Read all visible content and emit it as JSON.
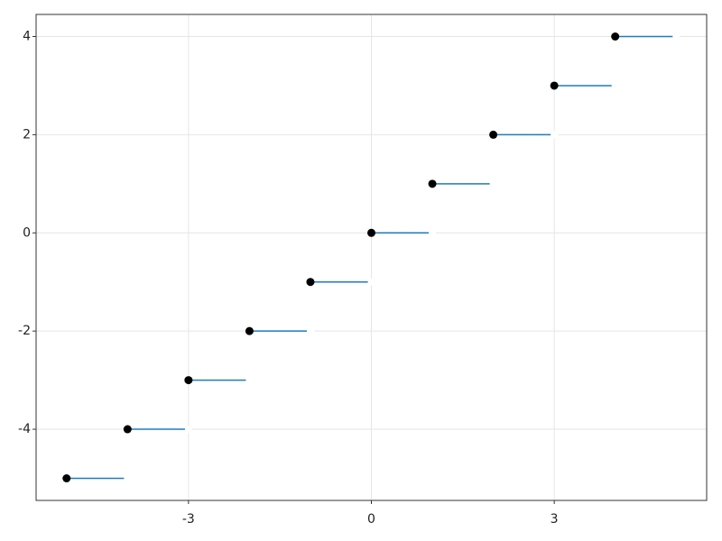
{
  "chart_data": {
    "type": "segments",
    "x": [
      -5,
      -4,
      -3,
      -2,
      -1,
      0,
      1,
      2,
      3,
      4
    ],
    "x_end": [
      -4,
      -3,
      -2,
      -1,
      0,
      1,
      2,
      3,
      4,
      5
    ],
    "values": [
      -5,
      -4,
      -3,
      -2,
      -1,
      0,
      1,
      2,
      3,
      4
    ],
    "color": "#1f7bbf",
    "marker_color": "#000000",
    "end_marker_color": "#ffffff",
    "xlim": [
      -5.5,
      5.5
    ],
    "ylim": [
      -5.45,
      4.45
    ],
    "xticks": [
      -3,
      0,
      3
    ],
    "yticks": [
      -4,
      -2,
      0,
      2,
      4
    ],
    "grid": true
  }
}
